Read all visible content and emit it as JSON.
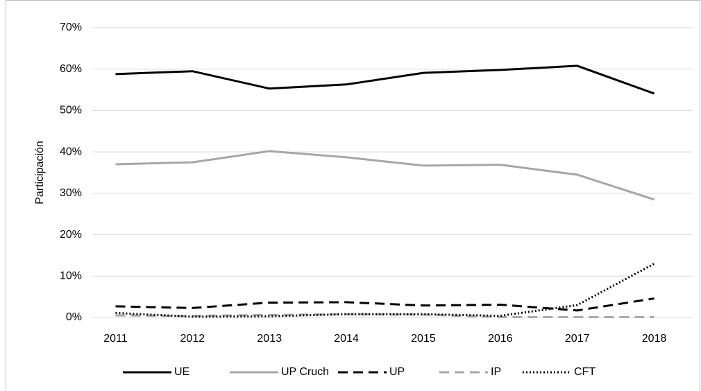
{
  "chart_data": {
    "type": "line",
    "y_label": "Participación",
    "categories": [
      "2011",
      "2012",
      "2013",
      "2014",
      "2015",
      "2016",
      "2017",
      "2018"
    ],
    "series": [
      {
        "name": "UE",
        "color": "#000000",
        "style": "solid",
        "values": [
          58.8,
          59.5,
          55.3,
          56.3,
          59.1,
          59.8,
          60.8,
          54.1
        ]
      },
      {
        "name": "UP Cruch",
        "color": "#a6a6a6",
        "style": "solid",
        "values": [
          37.0,
          37.5,
          40.2,
          38.7,
          36.7,
          36.9,
          34.5,
          28.5
        ]
      },
      {
        "name": "UP",
        "color": "#000000",
        "style": "dashed",
        "values": [
          2.7,
          2.3,
          3.6,
          3.7,
          2.9,
          3.1,
          1.7,
          4.6
        ]
      },
      {
        "name": "IP",
        "color": "#a6a6a6",
        "style": "dashed",
        "values": [
          0.5,
          0.4,
          0.6,
          0.8,
          0.7,
          0.1,
          0.1,
          0.1
        ]
      },
      {
        "name": "CFT",
        "color": "#000000",
        "style": "dotted",
        "values": [
          1.1,
          0.2,
          0.3,
          0.8,
          0.8,
          0.4,
          3.0,
          13.0
        ]
      }
    ],
    "ylim": [
      0,
      70
    ],
    "yticks": [
      {
        "value": 0,
        "label": "0%"
      },
      {
        "value": 10,
        "label": "10%"
      },
      {
        "value": 20,
        "label": "20%"
      },
      {
        "value": 30,
        "label": "30%"
      },
      {
        "value": 40,
        "label": "40%"
      },
      {
        "value": 50,
        "label": "50%"
      },
      {
        "value": 60,
        "label": "60%"
      },
      {
        "value": 70,
        "label": "70%"
      }
    ],
    "grid": true,
    "legend": "bottom"
  }
}
